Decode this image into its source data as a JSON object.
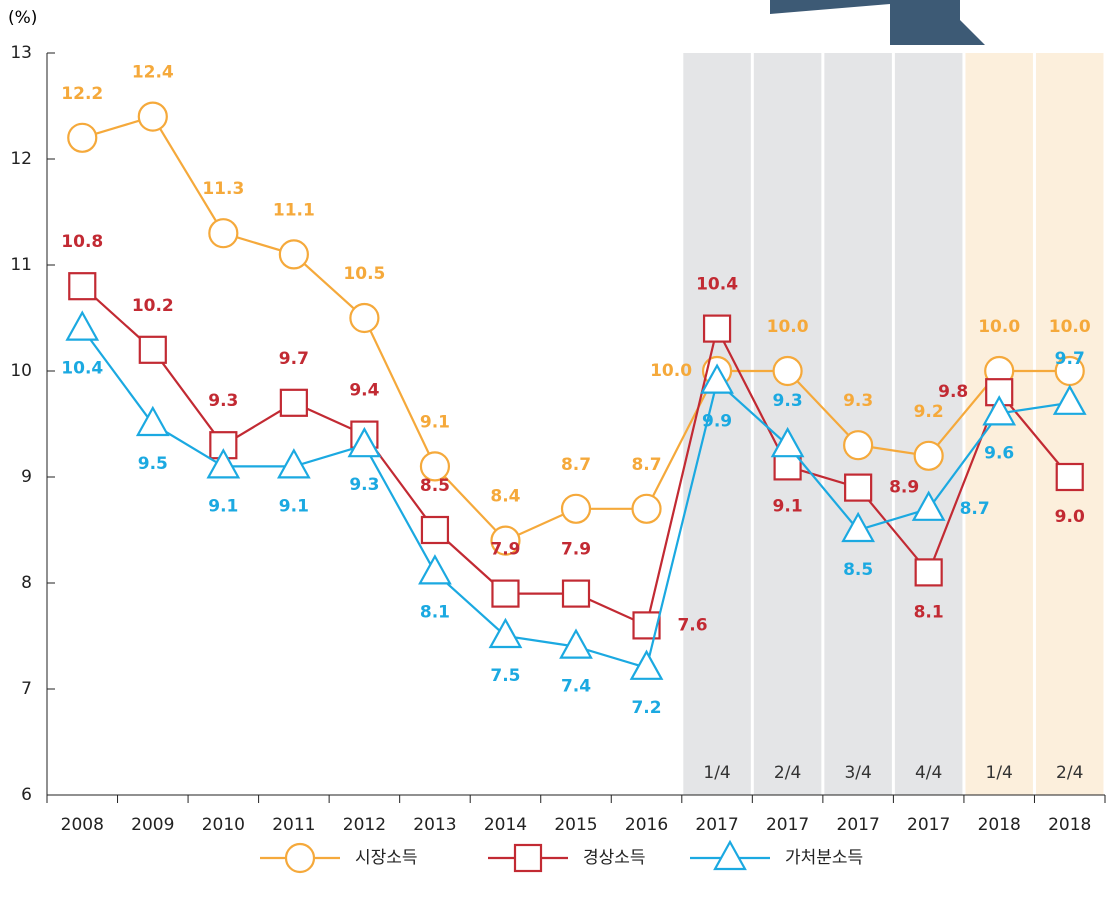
{
  "chart_data": {
    "type": "line",
    "y_axis_label": "(%)",
    "categories": [
      "2008",
      "2009",
      "2010",
      "2011",
      "2012",
      "2013",
      "2014",
      "2015",
      "2016",
      "2017",
      "2017",
      "2017",
      "2017",
      "2018",
      "2018"
    ],
    "quarter_labels": [
      null,
      null,
      null,
      null,
      null,
      null,
      null,
      null,
      null,
      "1/4",
      "2/4",
      "3/4",
      "4/4",
      "1/4",
      "2/4"
    ],
    "shade": [
      null,
      null,
      null,
      null,
      null,
      null,
      null,
      null,
      null,
      "#e4e5e7",
      "#e4e5e7",
      "#e4e5e7",
      "#e4e5e7",
      "#fcefdc",
      "#fcefdc"
    ],
    "ylim": [
      6,
      13
    ],
    "yticks": [
      6,
      7,
      8,
      9,
      10,
      11,
      12,
      13
    ],
    "series": [
      {
        "name": "시장소득",
        "color": "#f5a93b",
        "marker": "circle",
        "values": [
          12.2,
          12.4,
          11.3,
          11.1,
          10.5,
          9.1,
          8.4,
          8.7,
          8.7,
          10.0,
          10.0,
          9.3,
          9.2,
          10.0,
          10.0
        ],
        "value_labels": [
          "12.2",
          "12.4",
          "11.3",
          "11.1",
          "10.5",
          "9.1",
          "8.4",
          "8.7",
          "8.7",
          "10.0",
          "10.0",
          "9.3",
          "9.2",
          "10.0",
          "10.0"
        ]
      },
      {
        "name": "경상소득",
        "color": "#c22a33",
        "marker": "square",
        "values": [
          10.8,
          10.2,
          9.3,
          9.7,
          9.4,
          8.5,
          7.9,
          7.9,
          7.6,
          10.4,
          9.1,
          8.9,
          8.1,
          9.8,
          9.0
        ],
        "value_labels": [
          "10.8",
          "10.2",
          "9.3",
          "9.7",
          "9.4",
          "8.5",
          "7.9",
          "7.9",
          "7.6",
          "10.4",
          "9.1",
          "8.9",
          "8.1",
          "9.8",
          "9.0"
        ]
      },
      {
        "name": "가처분소득",
        "color": "#1ba9e1",
        "marker": "triangle",
        "values": [
          10.4,
          9.5,
          9.1,
          9.1,
          9.3,
          8.1,
          7.5,
          7.4,
          7.2,
          9.9,
          9.3,
          8.5,
          8.7,
          9.6,
          9.7
        ],
        "value_labels": [
          "10.4",
          "9.5",
          "9.1",
          "9.1",
          "9.3",
          "8.1",
          "7.5",
          "7.4",
          "7.2",
          "9.9",
          "9.3",
          "8.5",
          "8.7",
          "9.6",
          "9.7"
        ]
      }
    ]
  }
}
